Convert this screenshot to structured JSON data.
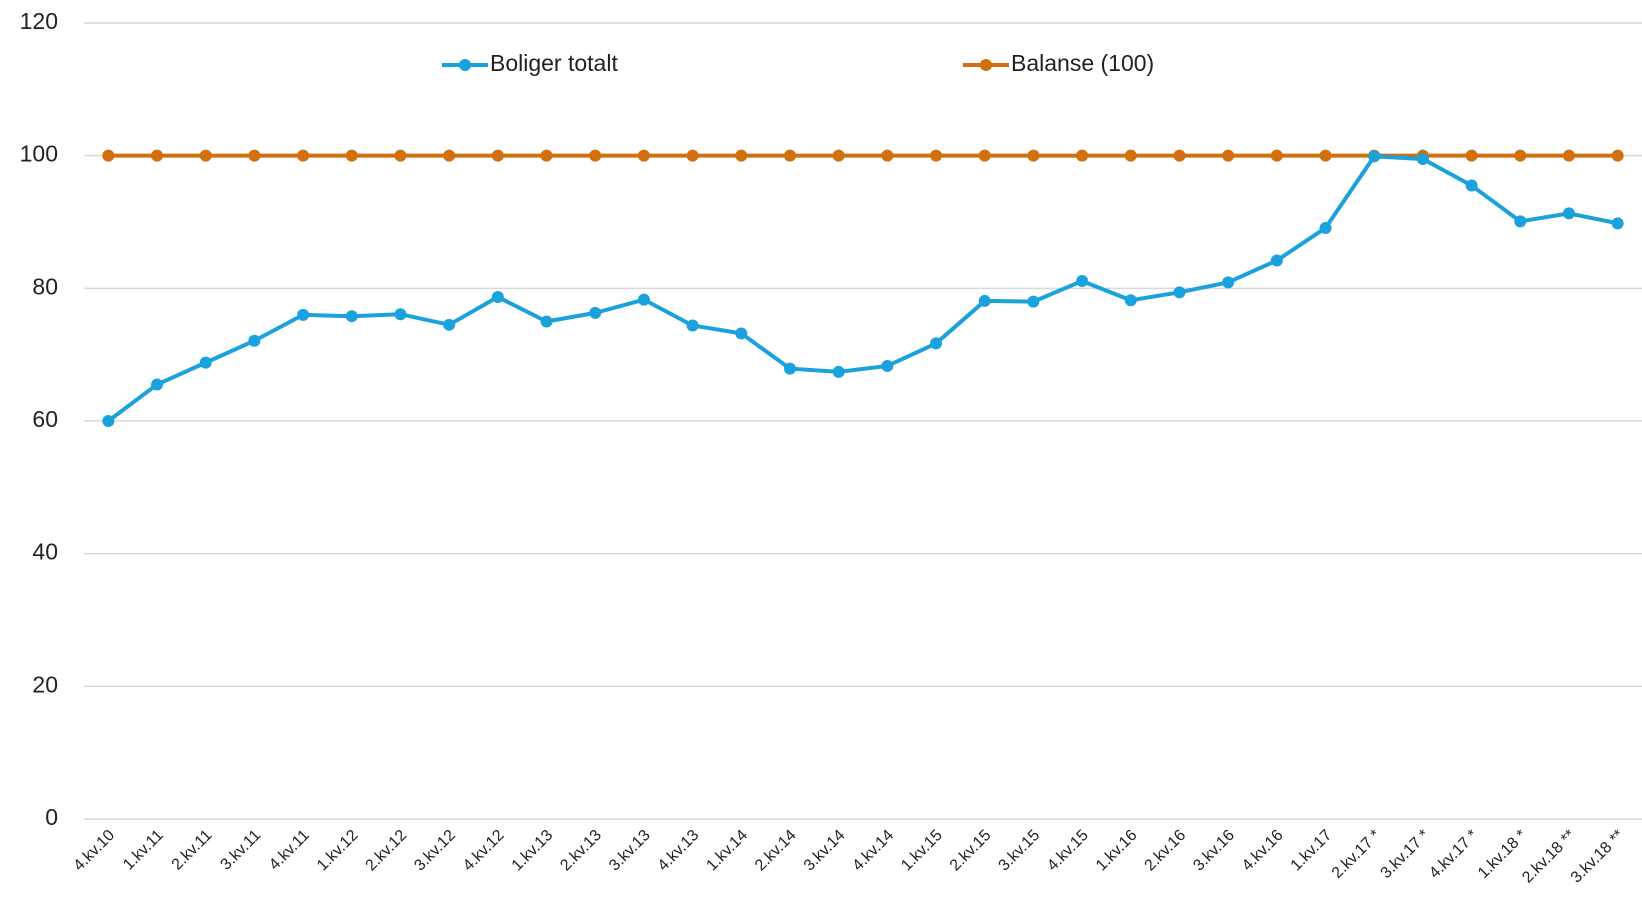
{
  "chart_data": {
    "type": "line",
    "categories": [
      "4.kv.10",
      "1.kv.11",
      "2.kv.11",
      "3.kv.11",
      "4.kv.11",
      "1.kv.12",
      "2.kv.12",
      "3.kv.12",
      "4.kv.12",
      "1.kv.13",
      "2.kv.13",
      "3.kv.13",
      "4.kv.13",
      "1.kv.14",
      "2.kv.14",
      "3.kv.14",
      "4.kv.14",
      "1.kv.15",
      "2.kv.15",
      "3.kv.15",
      "4.kv.15",
      "1.kv.16",
      "2.kv.16",
      "3.kv.16",
      "4.kv.16",
      "1.kv.17",
      "2.kv.17 *",
      "3.kv.17 *",
      "4.kv.17 *",
      "1.kv.18 *",
      "2.kv.18 **",
      "3.kv.18 **"
    ],
    "series": [
      {
        "name": "Boliger totalt",
        "color": "#1ba1db",
        "values": [
          60,
          65.5,
          68.8,
          72.1,
          76,
          75.8,
          76.1,
          74.5,
          78.7,
          75,
          76.3,
          78.3,
          74.4,
          73.2,
          67.9,
          67.4,
          68.3,
          71.7,
          78.1,
          78,
          81.1,
          78.2,
          79.4,
          80.9,
          84.2,
          89.1,
          99.9,
          99.5,
          95.5,
          90.1,
          91.3,
          89.8
        ]
      },
      {
        "name": "Balanse (100)",
        "color": "#d0700f",
        "values": [
          100,
          100,
          100,
          100,
          100,
          100,
          100,
          100,
          100,
          100,
          100,
          100,
          100,
          100,
          100,
          100,
          100,
          100,
          100,
          100,
          100,
          100,
          100,
          100,
          100,
          100,
          100,
          100,
          100,
          100,
          100,
          100
        ]
      }
    ],
    "ylim": [
      0,
      120
    ],
    "yticks": [
      0,
      20,
      40,
      60,
      80,
      100,
      120
    ],
    "grid": true
  }
}
